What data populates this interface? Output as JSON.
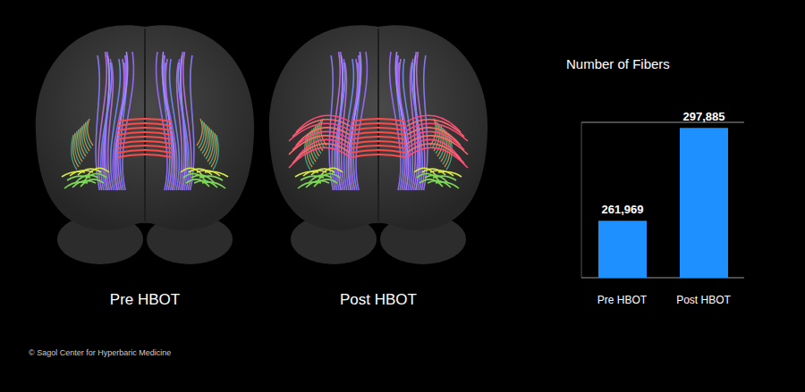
{
  "chart_data": {
    "type": "bar",
    "title": "Number of Fibers",
    "categories": [
      "Pre HBOT",
      "Post HBOT"
    ],
    "values": [
      261969,
      297885
    ],
    "value_labels": [
      "261,969",
      "297,885"
    ],
    "color": "#1e90ff",
    "ylim": [
      240000,
      300000
    ],
    "yticks": [
      240000,
      250000,
      260000
    ],
    "grid": true,
    "data_labels": true,
    "tick_labels": "x"
  },
  "panels": [
    {
      "label": "Pre HBOT"
    },
    {
      "label": "Post HBOT"
    }
  ],
  "credit": "© Sagol Center for Hyperbaric Medicine"
}
